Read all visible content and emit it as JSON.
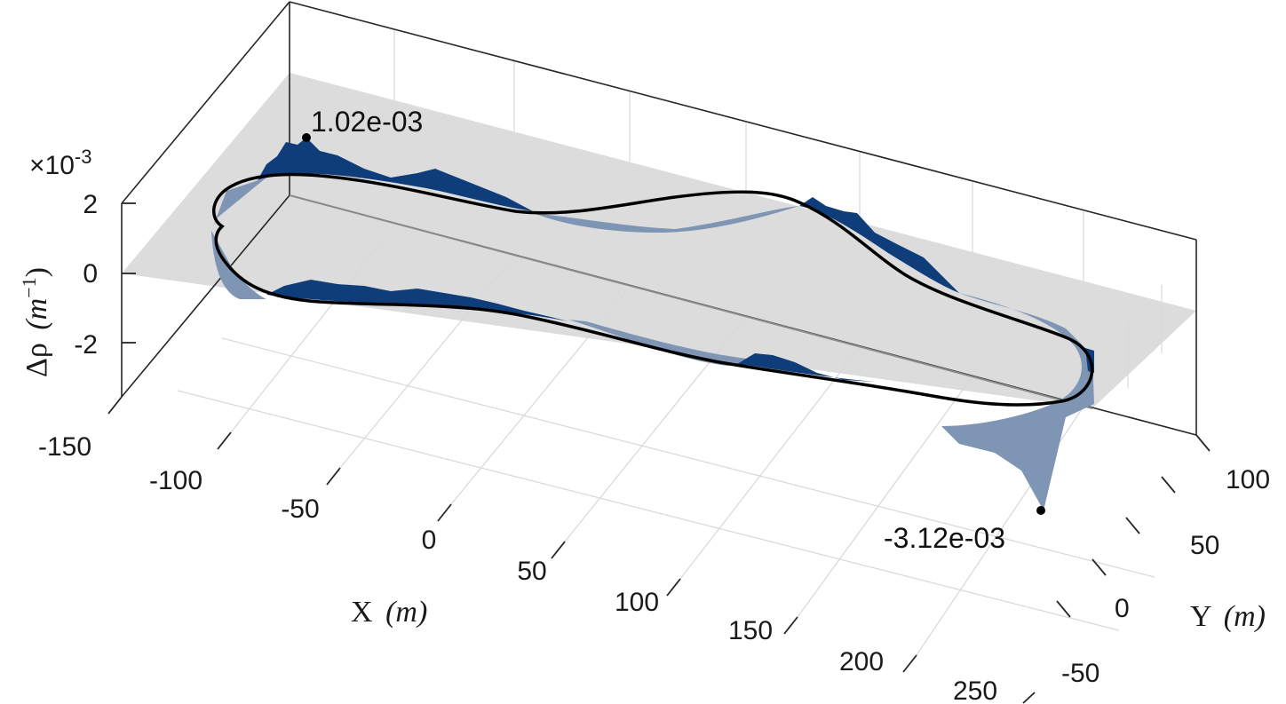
{
  "chart_data": {
    "type": "3d-surface-line",
    "xlabel": "X",
    "xlabel_unit": "(m)",
    "ylabel": "Y",
    "ylabel_unit": "(m)",
    "zlabel": "Δρ",
    "zlabel_unit": "(m",
    "zlabel_unit_sup": "−1",
    "zlabel_unit_close": ")",
    "z_exponent_base": "×10",
    "z_exponent": "-3",
    "xlim": [
      -150,
      250
    ],
    "ylim": [
      -50,
      100
    ],
    "zlim": [
      -0.00312,
      0.0022
    ],
    "x_ticks": [
      -150,
      -100,
      -50,
      0,
      50,
      100,
      150,
      200,
      250
    ],
    "x_tick_labels": [
      "-150",
      "-100",
      "-50",
      "0",
      "50",
      "100",
      "150",
      "200",
      "250"
    ],
    "y_ticks": [
      -50,
      0,
      50,
      100
    ],
    "y_tick_labels": [
      "-50",
      "0",
      "50",
      "100"
    ],
    "z_ticks": [
      -2,
      0,
      2
    ],
    "z_tick_labels": [
      "-2",
      "0",
      "2"
    ],
    "grid": true,
    "annotations": [
      {
        "label": "1.02e-03",
        "value": 0.00102,
        "x": -75,
        "y": 85
      },
      {
        "label": "-3.12e-03",
        "value": -0.00312,
        "x": 230,
        "y": -45
      }
    ],
    "colors": {
      "positive_fill": "#0f3d7a",
      "negative_fill": "#7f95b4",
      "track_line": "#000000",
      "plane": "#dcdcdc"
    }
  }
}
